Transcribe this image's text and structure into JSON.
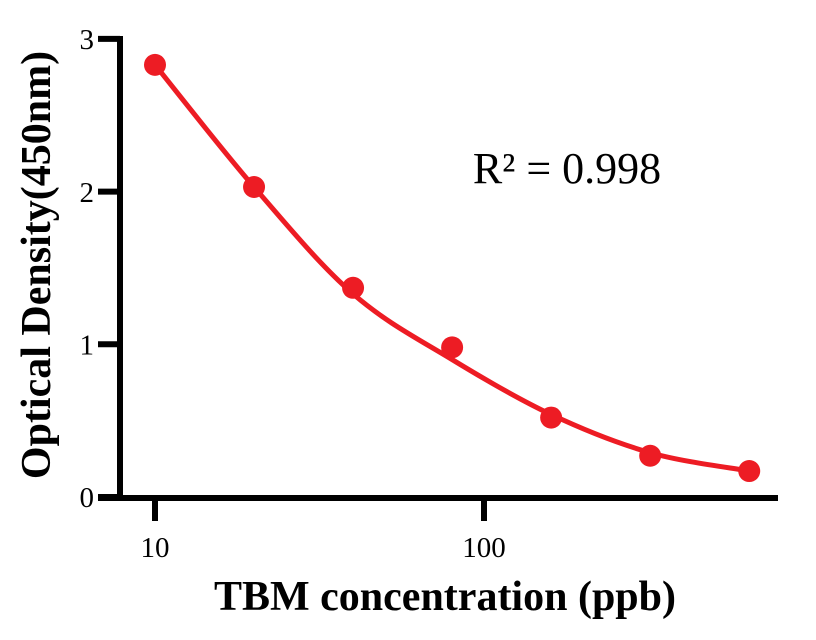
{
  "chart_data": {
    "type": "scatter",
    "title": "",
    "xlabel": "TBM concentration (ppb)",
    "ylabel": "Optical Density(450nm)",
    "annotation": "R² = 0.998",
    "x_scale": "log",
    "xlim": [
      7,
      800
    ],
    "ylim": [
      0,
      3
    ],
    "x_tick_values": [
      10,
      100
    ],
    "x_tick_labels": [
      "10",
      "100"
    ],
    "y_tick_values": [
      0,
      1,
      2,
      3
    ],
    "y_tick_labels": [
      "0",
      "1",
      "2",
      "3"
    ],
    "grid": false,
    "legend_position": "none",
    "colors": {
      "marker": "#ED1C24",
      "line": "#ED1C24",
      "axis": "#000000",
      "text": "#000000",
      "background": "#ffffff"
    },
    "series": [
      {
        "name": "standard data points",
        "type": "scatter",
        "x": [
          10,
          20,
          40,
          80,
          160,
          320,
          640
        ],
        "y": [
          2.83,
          2.03,
          1.37,
          0.98,
          0.52,
          0.27,
          0.17
        ]
      },
      {
        "name": "4PL fit curve",
        "type": "line",
        "x": [
          10,
          20,
          40,
          80,
          160,
          320,
          640
        ],
        "y": [
          2.83,
          2.03,
          1.33,
          0.9,
          0.54,
          0.29,
          0.17
        ]
      }
    ]
  }
}
